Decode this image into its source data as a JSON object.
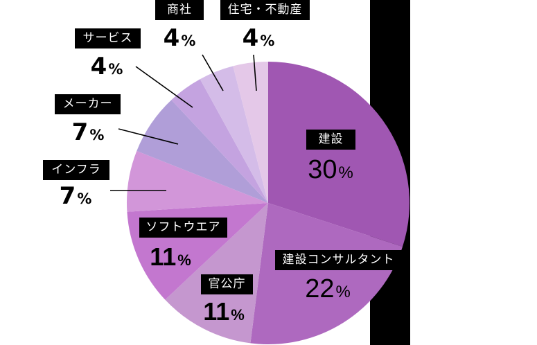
{
  "chart_data": {
    "type": "pie",
    "title": "",
    "start_angle": "12 o'clock",
    "direction": "clockwise",
    "categories": [
      "建設",
      "建設コンサルタント",
      "官公庁",
      "ソフトウエア",
      "インフラ",
      "メーカー",
      "サービス",
      "商社",
      "住宅・不動産"
    ],
    "values": [
      30,
      22,
      11,
      11,
      7,
      7,
      4,
      4,
      4
    ],
    "unit": "%",
    "colors": [
      "#a057b2",
      "#ae69bf",
      "#c597cf",
      "#c377cf",
      "#d296d9",
      "#b09ed8",
      "#c4a3e0",
      "#d4bce8",
      "#e4c8e8"
    ]
  },
  "labels": [
    {
      "name": "建設",
      "value": "30",
      "sym": "%"
    },
    {
      "name": "建設コンサルタント",
      "value": "22",
      "sym": "%"
    },
    {
      "name": "官公庁",
      "value": "11",
      "sym": "%"
    },
    {
      "name": "ソフトウエア",
      "value": "11",
      "sym": "%"
    },
    {
      "name": "インフラ",
      "value": "7",
      "sym": "%"
    },
    {
      "name": "メーカー",
      "value": "7",
      "sym": "%"
    },
    {
      "name": "サービス",
      "value": "4",
      "sym": "%"
    },
    {
      "name": "商社",
      "value": "4",
      "sym": "%"
    },
    {
      "name": "住宅・不動産",
      "value": "4",
      "sym": "%"
    }
  ]
}
